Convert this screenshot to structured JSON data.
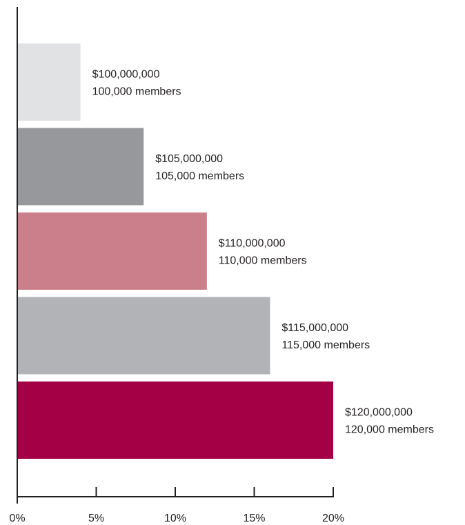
{
  "chart_data": {
    "type": "bar",
    "orientation": "horizontal",
    "categories": [
      "$100,000,000",
      "$105,000,000",
      "$110,000,000",
      "$115,000,000",
      "$120,000,000"
    ],
    "values": [
      4,
      8,
      12,
      16,
      20
    ],
    "unit": "%",
    "bar_labels": [
      [
        "$100,000,000",
        "100,000 members"
      ],
      [
        "$105,000,000",
        "105,000 members"
      ],
      [
        "$110,000,000",
        "110,000 members"
      ],
      [
        "$115,000,000",
        "115,000 members"
      ],
      [
        "$120,000,000",
        "120,000 members"
      ]
    ],
    "bar_colors": [
      "#e1e2e3",
      "#97989b",
      "#ca7f8a",
      "#b1b3b6",
      "#a30046"
    ],
    "xlim": [
      0,
      20
    ],
    "x_ticks": [
      0,
      5,
      10,
      15,
      20
    ],
    "x_tick_labels": [
      "0%",
      "5%",
      "10%",
      "15%",
      "20%"
    ],
    "title": "",
    "xlabel": "",
    "ylabel": "",
    "grid": false,
    "legend": "none",
    "axis_color": "#231f20",
    "text_color": "#231f20"
  }
}
